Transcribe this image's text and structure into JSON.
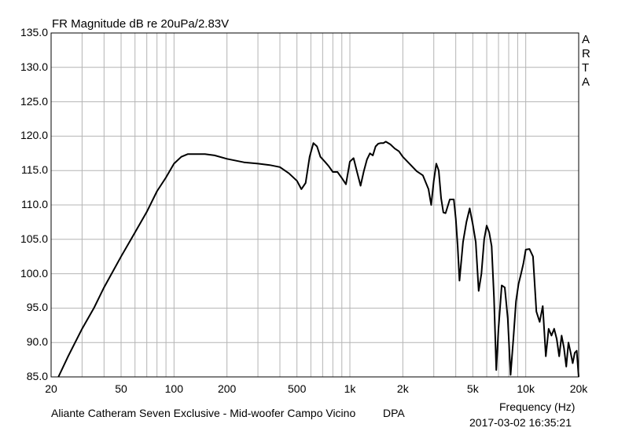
{
  "chart_data": {
    "type": "line",
    "title": "FR Magnitude dB re 20uPa/2.83V",
    "brand": "ARTA",
    "xlabel": "Frequency (Hz)",
    "xscale": "log",
    "xlim": [
      20,
      20000
    ],
    "ylim": [
      85,
      135
    ],
    "grid": true,
    "x_ticks": [
      {
        "value": 20,
        "label": "20"
      },
      {
        "value": 50,
        "label": "50"
      },
      {
        "value": 100,
        "label": "100"
      },
      {
        "value": 200,
        "label": "200"
      },
      {
        "value": 500,
        "label": "500"
      },
      {
        "value": 1000,
        "label": "1k"
      },
      {
        "value": 2000,
        "label": "2k"
      },
      {
        "value": 5000,
        "label": "5k"
      },
      {
        "value": 10000,
        "label": "10k"
      },
      {
        "value": 20000,
        "label": "20k"
      }
    ],
    "y_ticks": [
      "135.0",
      "130.0",
      "125.0",
      "120.0",
      "115.0",
      "110.0",
      "105.0",
      "100.0",
      "95.0",
      "90.0",
      "85.0"
    ],
    "footer_left": "Aliante Catheram Seven Exclusive - Mid-woofer Campo Vicino",
    "footer_mid": "DPA",
    "timestamp": "2017-03-02  16:35:21",
    "series": [
      {
        "color": "#000000",
        "x": [
          22,
          25,
          30,
          35,
          40,
          50,
          60,
          70,
          80,
          90,
          100,
          110,
          120,
          130,
          150,
          170,
          200,
          250,
          300,
          350,
          400,
          450,
          500,
          530,
          560,
          590,
          620,
          650,
          680,
          720,
          760,
          800,
          850,
          900,
          950,
          1000,
          1050,
          1100,
          1150,
          1200,
          1250,
          1300,
          1350,
          1400,
          1450,
          1500,
          1550,
          1600,
          1700,
          1800,
          1900,
          2000,
          2200,
          2400,
          2600,
          2800,
          2900,
          3000,
          3100,
          3200,
          3300,
          3400,
          3500,
          3700,
          3900,
          4000,
          4100,
          4200,
          4400,
          4600,
          4800,
          5000,
          5200,
          5400,
          5600,
          5800,
          6000,
          6200,
          6400,
          6600,
          6800,
          7000,
          7300,
          7600,
          7900,
          8200,
          8500,
          8800,
          9100,
          9400,
          9700,
          10000,
          10500,
          11000,
          11500,
          12000,
          12500,
          13000,
          13500,
          14000,
          14500,
          15000,
          15500,
          16000,
          16500,
          17000,
          17500,
          18000,
          18500,
          19000,
          19500,
          20000
        ],
        "y": [
          85,
          88,
          92,
          95,
          98,
          102.5,
          106,
          109,
          112,
          114,
          116,
          117,
          117.4,
          117.4,
          117.4,
          117.2,
          116.7,
          116.2,
          116,
          115.8,
          115.5,
          114.6,
          113.5,
          112.3,
          113.2,
          117,
          119,
          118.5,
          117,
          116.3,
          115.6,
          114.8,
          114.8,
          113.9,
          113,
          116.3,
          116.8,
          114.7,
          112.8,
          114.9,
          116.6,
          117.5,
          117.2,
          118.5,
          118.9,
          119,
          119,
          119.2,
          118.8,
          118.2,
          117.8,
          117,
          115.9,
          114.9,
          114.3,
          112.3,
          110,
          113.5,
          116,
          115,
          111,
          108.9,
          108.8,
          110.8,
          110.8,
          108,
          104,
          99,
          104.6,
          107.5,
          109.5,
          107.2,
          104.6,
          97.5,
          100,
          105,
          107,
          106,
          104,
          96.5,
          86,
          92,
          98.3,
          98,
          93.5,
          85.3,
          90.5,
          96,
          98.5,
          100,
          101.5,
          103.5,
          103.6,
          102.5,
          94.5,
          93,
          95.3,
          88,
          92,
          91,
          92,
          90.5,
          88,
          91,
          89.2,
          86.5,
          90,
          88.5,
          87,
          88.5,
          88.8,
          85
        ]
      }
    ]
  }
}
